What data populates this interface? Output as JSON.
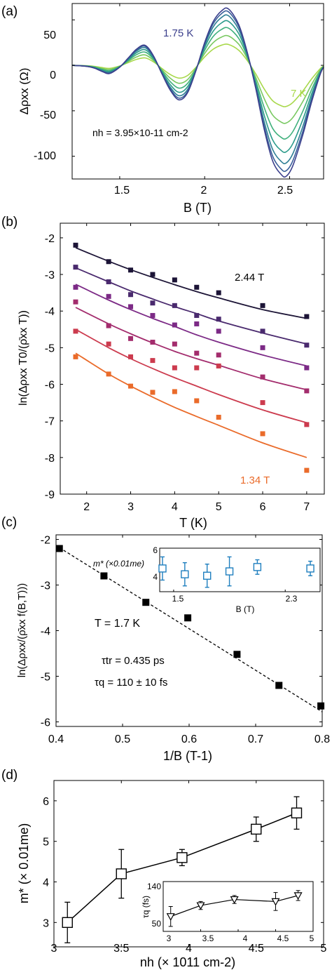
{
  "figure": {
    "panels": [
      {
        "label": "(a)",
        "ylabel": "Δρxx (Ω)",
        "xlabel": "B (T)",
        "xticks": [
          "1.5",
          "2",
          "2.5"
        ],
        "yticks": [
          "50",
          "0",
          "-50",
          "-100"
        ],
        "annotations": [
          "1.75 K",
          "7 K",
          "nh = 3.95×10-11 cm-2"
        ]
      },
      {
        "label": "(b)",
        "ylabel": "ln(Δρxx T0/(ρ̄xx T))",
        "xlabel": "T (K)",
        "xticks": [
          "2",
          "3",
          "4",
          "5",
          "6",
          "7"
        ],
        "yticks": [
          "-2",
          "-3",
          "-4",
          "-5",
          "-6",
          "-7",
          "-8",
          "-9"
        ],
        "annotations": [
          "2.44 T",
          "1.34 T"
        ]
      },
      {
        "label": "(c)",
        "ylabel": "ln(Δρxx/(ρ̄xx f(B,T)))",
        "xlabel": "1/B (T-1)",
        "xticks": [
          "0.4",
          "0.5",
          "0.6",
          "0.7",
          "0.8"
        ],
        "yticks": [
          "-2",
          "-3",
          "-4",
          "-5",
          "-6"
        ],
        "annotations": [
          "T = 1.7 K",
          "τtr = 0.435 ps",
          "τq = 110 ± 10 fs"
        ],
        "inset": {
          "ylabel": "m* (×0.01me)",
          "xlabel": "B (T)",
          "xticks": [
            "1.5",
            "2.3"
          ],
          "yticks": [
            "6",
            "4"
          ]
        }
      },
      {
        "label": "(d)",
        "ylabel": "m* (× 0.01me)",
        "xlabel": "nh (× 1011 cm-2)",
        "xticks": [
          "3",
          "3.5",
          "4",
          "4.5",
          "5"
        ],
        "yticks": [
          "6",
          "5",
          "4",
          "3"
        ],
        "inset": {
          "ylabel": "τq (fs)",
          "xticks": [
            "3",
            "3.5",
            "4",
            "4.5",
            "5"
          ],
          "yticks": [
            "140",
            "50"
          ]
        }
      }
    ]
  },
  "chart_data": [
    {
      "type": "line",
      "panel": "a",
      "xlabel": "B (T)",
      "ylabel": "Δρxx (Ω)",
      "xlim": [
        1.22,
        2.7
      ],
      "ylim": [
        -125,
        68
      ],
      "series": [
        {
          "name": "1.75 K",
          "color": "#3b3f8c",
          "scale": 1.0
        },
        {
          "color": "#3a5f9a",
          "scale": 0.95
        },
        {
          "color": "#2f7f95",
          "scale": 0.88
        },
        {
          "color": "#2a9a8a",
          "scale": 0.78
        },
        {
          "color": "#3fb07c",
          "scale": 0.66
        },
        {
          "color": "#78c860",
          "scale": 0.52
        },
        {
          "name": "7 K",
          "color": "#a8d84a",
          "scale": 0.37
        }
      ],
      "base_curve": {
        "B": [
          1.22,
          1.3,
          1.35,
          1.4,
          1.44,
          1.5,
          1.55,
          1.6,
          1.65,
          1.7,
          1.75,
          1.8,
          1.85,
          1.9,
          1.95,
          2.0,
          2.05,
          2.1,
          2.14,
          2.2,
          2.25,
          2.3,
          2.35,
          2.4,
          2.45,
          2.48,
          2.52,
          2.58,
          2.63,
          2.68,
          2.7
        ],
        "value": [
          0,
          -1,
          -3,
          -7,
          -9,
          -2,
          8,
          18,
          22,
          10,
          -10,
          -28,
          -38,
          -30,
          -5,
          25,
          48,
          60,
          62,
          45,
          15,
          -25,
          -70,
          -105,
          -120,
          -122,
          -110,
          -75,
          -40,
          -10,
          -2
        ]
      }
    },
    {
      "type": "scatter",
      "panel": "b",
      "xlabel": "T (K)",
      "ylabel": "ln(Δρxx T0/(ρ̄xx T))",
      "xlim": [
        1.4,
        7.4
      ],
      "ylim": [
        -9,
        -1.6
      ],
      "x": [
        1.75,
        2.5,
        3,
        3.5,
        4,
        4.5,
        5,
        6,
        7
      ],
      "series": [
        {
          "name": "2.44 T",
          "color": "#1c1436",
          "values": [
            -2.2,
            -2.65,
            -2.88,
            -3.0,
            -3.15,
            -3.35,
            -3.5,
            -3.85,
            -4.15
          ],
          "fit": [
            -2.27,
            -2.64,
            -2.87,
            -3.08,
            -3.28,
            -3.47,
            -3.64,
            -3.96,
            -4.2
          ]
        },
        {
          "color": "#4a2a6e",
          "values": [
            -2.8,
            -3.2,
            -3.55,
            -3.78,
            -3.85,
            -4.12,
            -4.22,
            -4.55,
            -4.93
          ],
          "fit": [
            -2.82,
            -3.2,
            -3.45,
            -3.67,
            -3.88,
            -4.07,
            -4.27,
            -4.6,
            -4.9
          ]
        },
        {
          "color": "#7c2a86",
          "values": [
            -3.35,
            -3.6,
            -3.88,
            -4.12,
            -4.38,
            -4.35,
            -4.55,
            -5.0,
            -5.55
          ],
          "fit": [
            -3.27,
            -3.7,
            -3.96,
            -4.2,
            -4.42,
            -4.65,
            -4.85,
            -5.2,
            -5.5
          ]
        },
        {
          "color": "#a32c6d",
          "values": [
            -3.75,
            -4.4,
            -4.75,
            -4.85,
            -4.9,
            -5.15,
            -5.2,
            -5.8,
            -6.18
          ],
          "fit": [
            -3.9,
            -4.35,
            -4.62,
            -4.87,
            -5.1,
            -5.3,
            -5.48,
            -5.85,
            -6.15
          ]
        },
        {
          "color": "#cc3b4e",
          "values": [
            -4.55,
            -4.9,
            -5.25,
            -5.35,
            -5.55,
            -5.55,
            -5.5,
            -6.5,
            -7.1
          ],
          "fit": [
            -4.5,
            -5.0,
            -5.3,
            -5.57,
            -5.82,
            -6.05,
            -6.28,
            -6.7,
            -7.05
          ]
        },
        {
          "name": "1.34 T",
          "color": "#ea6b2a",
          "values": [
            -5.25,
            -5.72,
            -6.05,
            -6.22,
            -6.2,
            -6.45,
            -6.9,
            -7.35,
            -8.35
          ],
          "fit": [
            -5.15,
            -5.72,
            -6.05,
            -6.35,
            -6.63,
            -6.88,
            -7.12,
            -7.6,
            -8.0
          ]
        }
      ]
    },
    {
      "type": "scatter",
      "panel": "c",
      "xlabel": "1/B (T-1)",
      "ylabel": "ln(Δρxx/(ρ̄xx f(B,T)))",
      "xlim": [
        0.4,
        0.8
      ],
      "ylim": [
        -6.1,
        -1.9
      ],
      "x": [
        0.405,
        0.472,
        0.535,
        0.598,
        0.672,
        0.735,
        0.798
      ],
      "values": [
        -2.2,
        -2.8,
        -3.38,
        -3.72,
        -4.52,
        -5.2,
        -5.65
      ],
      "fit": {
        "x": [
          0.405,
          0.8
        ],
        "y": [
          -2.18,
          -5.78
        ]
      },
      "inset": {
        "type": "scatter",
        "xlabel": "B (T)",
        "xlim": [
          1.4,
          2.55
        ],
        "ylim": [
          3,
          6
        ],
        "x": [
          1.42,
          1.58,
          1.74,
          1.9,
          2.1,
          2.48
        ],
        "values": [
          4.6,
          4.2,
          4.1,
          4.4,
          4.7,
          4.6
        ],
        "err": [
          0.8,
          0.8,
          0.8,
          1.0,
          0.5,
          0.5
        ]
      }
    },
    {
      "type": "line",
      "panel": "d",
      "xlabel": "nh (× 1011 cm-2)",
      "ylabel": "m* (× 0.01me)",
      "xlim": [
        3,
        5
      ],
      "ylim": [
        2.4,
        6.5
      ],
      "x": [
        3.1,
        3.5,
        3.95,
        4.5,
        4.8
      ],
      "values": [
        3.0,
        4.2,
        4.6,
        5.3,
        5.7
      ],
      "err": [
        0.5,
        0.6,
        0.2,
        0.3,
        0.4
      ],
      "inset": {
        "type": "line",
        "ylabel": "τq (fs)",
        "xlim": [
          3,
          5
        ],
        "ylim": [
          50,
          150
        ],
        "x": [
          3.1,
          3.5,
          3.95,
          4.5,
          4.8
        ],
        "values": [
          80,
          102,
          114,
          110,
          122
        ],
        "err": [
          20,
          8,
          8,
          18,
          10
        ]
      }
    }
  ]
}
